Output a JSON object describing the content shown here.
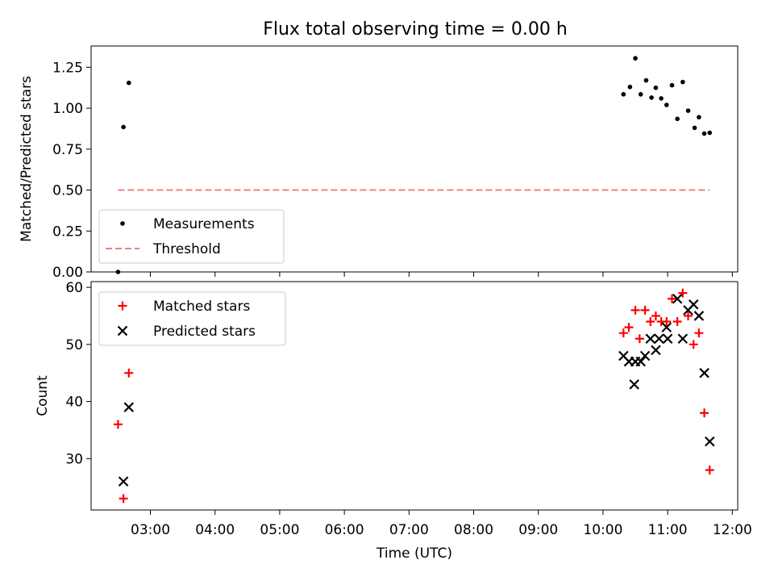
{
  "title": "Flux total observing time = 0.00 h",
  "chart_data": [
    {
      "type": "scatter",
      "title": "Flux total observing time = 0.00 h",
      "xlabel": "",
      "ylabel": "Matched/Predicted stars",
      "xlim": [
        "02:05",
        "12:05"
      ],
      "ylim": [
        0,
        1.38
      ],
      "yticks": [
        "0.00",
        "0.25",
        "0.50",
        "0.75",
        "1.00",
        "1.25"
      ],
      "legend_position": "lower-left",
      "series": [
        {
          "name": "Measurements",
          "style": "dot",
          "color": "#000000",
          "points": [
            [
              "02:30",
              0.0
            ],
            [
              "02:35",
              0.885
            ],
            [
              "02:40",
              1.155
            ],
            [
              "10:19",
              1.085
            ],
            [
              "10:25",
              1.13
            ],
            [
              "10:30",
              1.305
            ],
            [
              "10:35",
              1.085
            ],
            [
              "10:40",
              1.17
            ],
            [
              "10:45",
              1.065
            ],
            [
              "10:49",
              1.125
            ],
            [
              "10:54",
              1.06
            ],
            [
              "10:59",
              1.02
            ],
            [
              "11:04",
              1.14
            ],
            [
              "11:09",
              0.935
            ],
            [
              "11:14",
              1.16
            ],
            [
              "11:19",
              0.985
            ],
            [
              "11:25",
              0.88
            ],
            [
              "11:29",
              0.945
            ],
            [
              "11:34",
              0.845
            ],
            [
              "11:39",
              0.85
            ]
          ]
        },
        {
          "name": "Threshold",
          "style": "dashed-line",
          "color": "#f08080",
          "points": [
            [
              "02:30",
              0.5
            ],
            [
              "11:39",
              0.5
            ]
          ]
        }
      ]
    },
    {
      "type": "scatter",
      "xlabel": "Time (UTC)",
      "ylabel": "Count",
      "xlim": [
        "02:05",
        "12:05"
      ],
      "ylim": [
        21,
        61
      ],
      "yticks": [
        "30",
        "40",
        "50",
        "60"
      ],
      "xticks": [
        "03:00",
        "04:00",
        "05:00",
        "06:00",
        "07:00",
        "08:00",
        "09:00",
        "10:00",
        "11:00",
        "12:00"
      ],
      "legend_position": "upper-left",
      "series": [
        {
          "name": "Matched stars",
          "marker": "+",
          "color": "#ff0000",
          "points": [
            [
              "02:30",
              36
            ],
            [
              "02:35",
              23
            ],
            [
              "02:40",
              45
            ],
            [
              "10:19",
              52
            ],
            [
              "10:24",
              53
            ],
            [
              "10:30",
              56
            ],
            [
              "10:34",
              51
            ],
            [
              "10:39",
              56
            ],
            [
              "10:44",
              54
            ],
            [
              "10:49",
              55
            ],
            [
              "10:54",
              54
            ],
            [
              "10:59",
              54
            ],
            [
              "11:04",
              58
            ],
            [
              "11:09",
              54
            ],
            [
              "11:14",
              59
            ],
            [
              "11:19",
              55
            ],
            [
              "11:24",
              50
            ],
            [
              "11:29",
              52
            ],
            [
              "11:34",
              38
            ],
            [
              "11:39",
              28
            ]
          ]
        },
        {
          "name": "Predicted stars",
          "marker": "x",
          "color": "#000000",
          "points": [
            [
              "02:35",
              26
            ],
            [
              "02:40",
              39
            ],
            [
              "10:19",
              48
            ],
            [
              "10:24",
              47
            ],
            [
              "10:29",
              43
            ],
            [
              "10:30",
              47
            ],
            [
              "10:35",
              47
            ],
            [
              "10:39",
              48
            ],
            [
              "10:44",
              51
            ],
            [
              "10:49",
              49
            ],
            [
              "10:52",
              51
            ],
            [
              "10:59",
              53
            ],
            [
              "11:00",
              51
            ],
            [
              "11:09",
              58
            ],
            [
              "11:14",
              51
            ],
            [
              "11:19",
              56
            ],
            [
              "11:24",
              57
            ],
            [
              "11:29",
              55
            ],
            [
              "11:34",
              45
            ],
            [
              "11:39",
              33
            ]
          ]
        }
      ]
    }
  ]
}
